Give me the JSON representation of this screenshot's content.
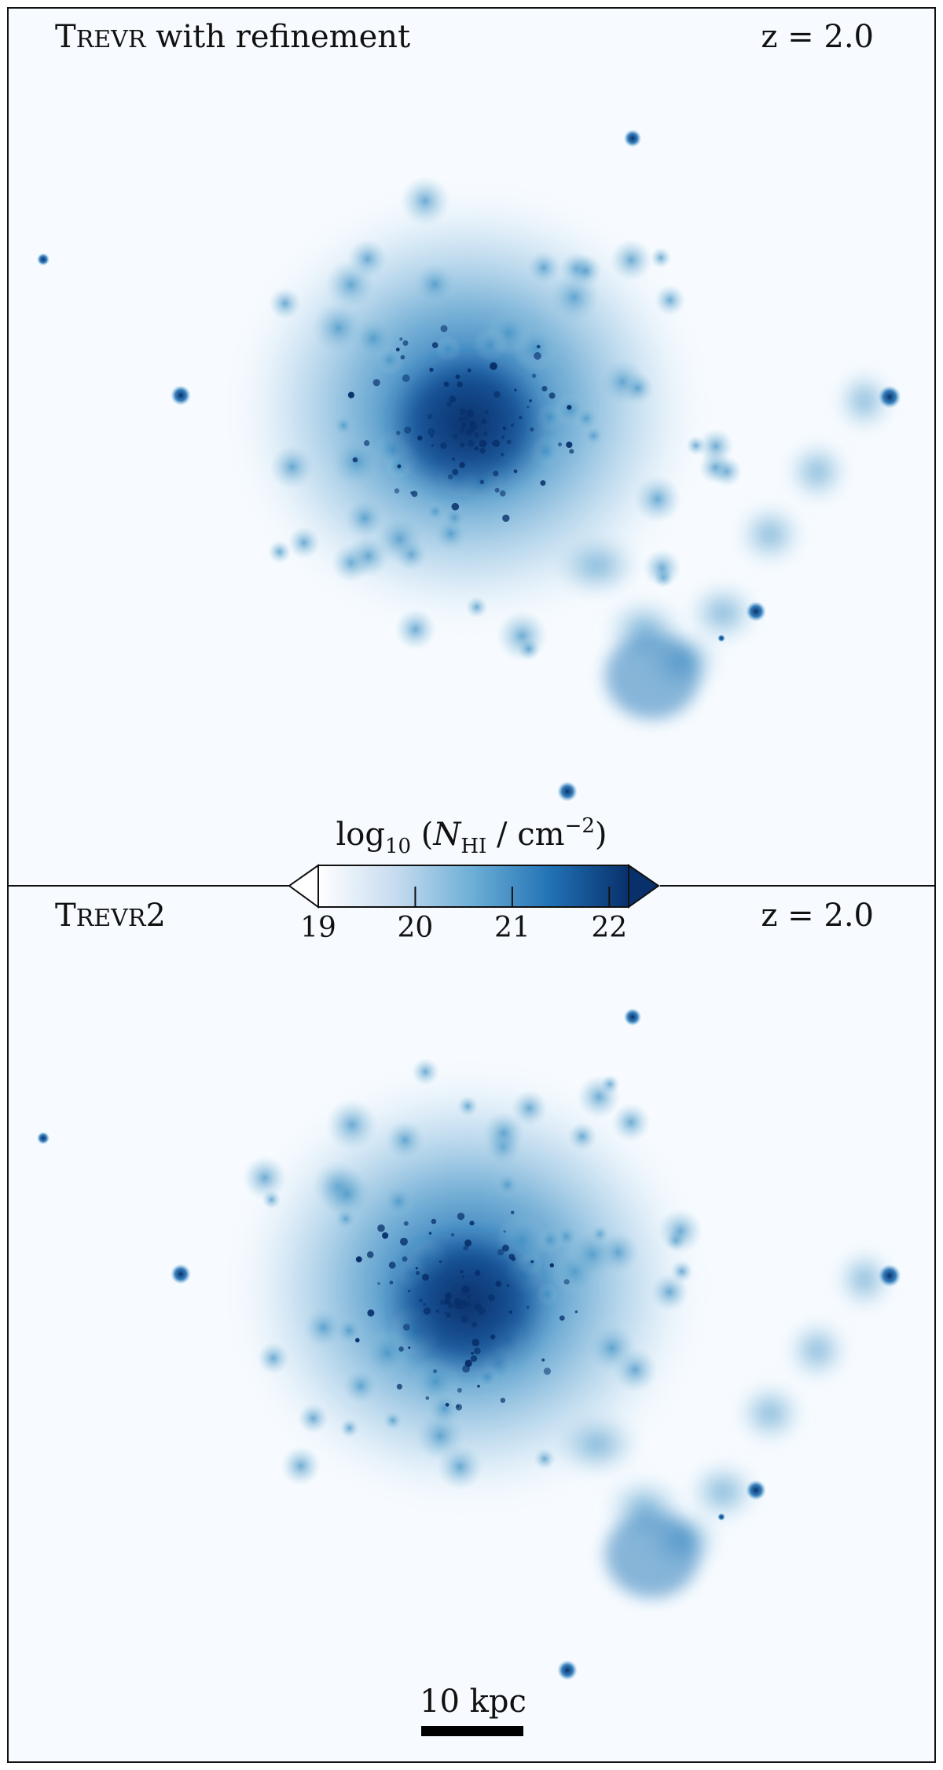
{
  "chart_data": {
    "type": "heatmap",
    "panels": [
      {
        "title_small_caps": {
          "initial": "T",
          "rest": "REVR",
          "suffix": " with refinement"
        },
        "redshift_label": "z = 2.0"
      },
      {
        "title_small_caps": {
          "initial": "T",
          "rest": "REVR",
          "suffix": "2"
        },
        "redshift_label": "z = 2.0"
      }
    ],
    "colorbar": {
      "title": {
        "prefix": "log",
        "sub": "10",
        "open": " (",
        "var": "N",
        "var_sub": "HI",
        "mid": " / cm",
        "sup": "−2",
        "close": ")"
      },
      "range": [
        19,
        22.2
      ],
      "ticks": [
        19,
        20,
        21,
        22
      ],
      "tick_labels": [
        "19",
        "20",
        "21",
        "22"
      ],
      "extend": "both",
      "colormap": "Blues",
      "colors": [
        "#ffffff",
        "#c6dbef",
        "#6baed6",
        "#2171b5",
        "#08306b"
      ]
    },
    "scale_bar": {
      "label": "10 kpc",
      "length_kpc": 10
    }
  }
}
